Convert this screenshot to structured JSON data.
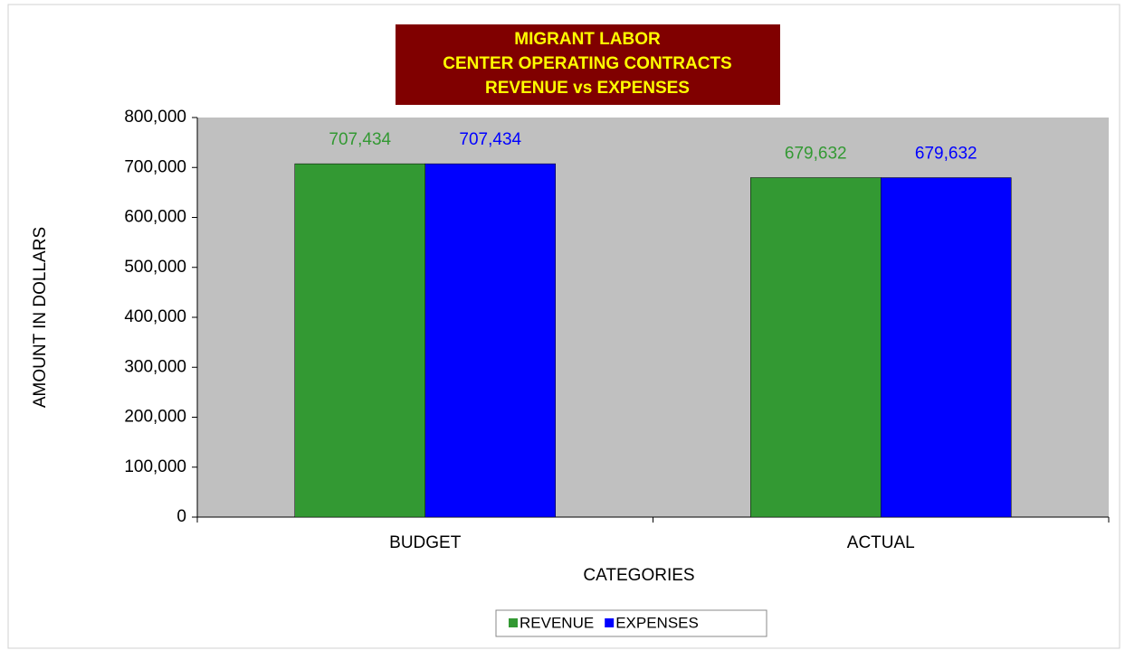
{
  "chart_data": {
    "type": "bar",
    "title": [
      "MIGRANT LABOR",
      "CENTER OPERATING CONTRACTS",
      "REVENUE vs EXPENSES"
    ],
    "xlabel": "CATEGORIES",
    "ylabel": "AMOUNT IN DOLLARS",
    "categories": [
      "BUDGET",
      "ACTUAL"
    ],
    "series": [
      {
        "name": "REVENUE",
        "color": "#339933",
        "values": [
          707434,
          679632
        ],
        "value_labels": [
          "707,434",
          "679,632"
        ]
      },
      {
        "name": "EXPENSES",
        "color": "#0000ff",
        "values": [
          707434,
          679632
        ],
        "value_labels": [
          "707,434",
          "679,632"
        ]
      }
    ],
    "ylim": [
      0,
      800000
    ],
    "yticks": [
      0,
      {
        "value": 100000,
        "label": "100,000"
      },
      {
        "value": 200000,
        "label": "200,000"
      },
      {
        "value": 300000,
        "label": "300,000"
      },
      {
        "value": 400000,
        "label": "400,000"
      },
      {
        "value": 500000,
        "label": "500,000"
      },
      {
        "value": 600000,
        "label": "600,000"
      },
      {
        "value": 700000,
        "label": "700,000"
      },
      {
        "value": 800000,
        "label": "800,000"
      }
    ],
    "legend": "bottom"
  }
}
